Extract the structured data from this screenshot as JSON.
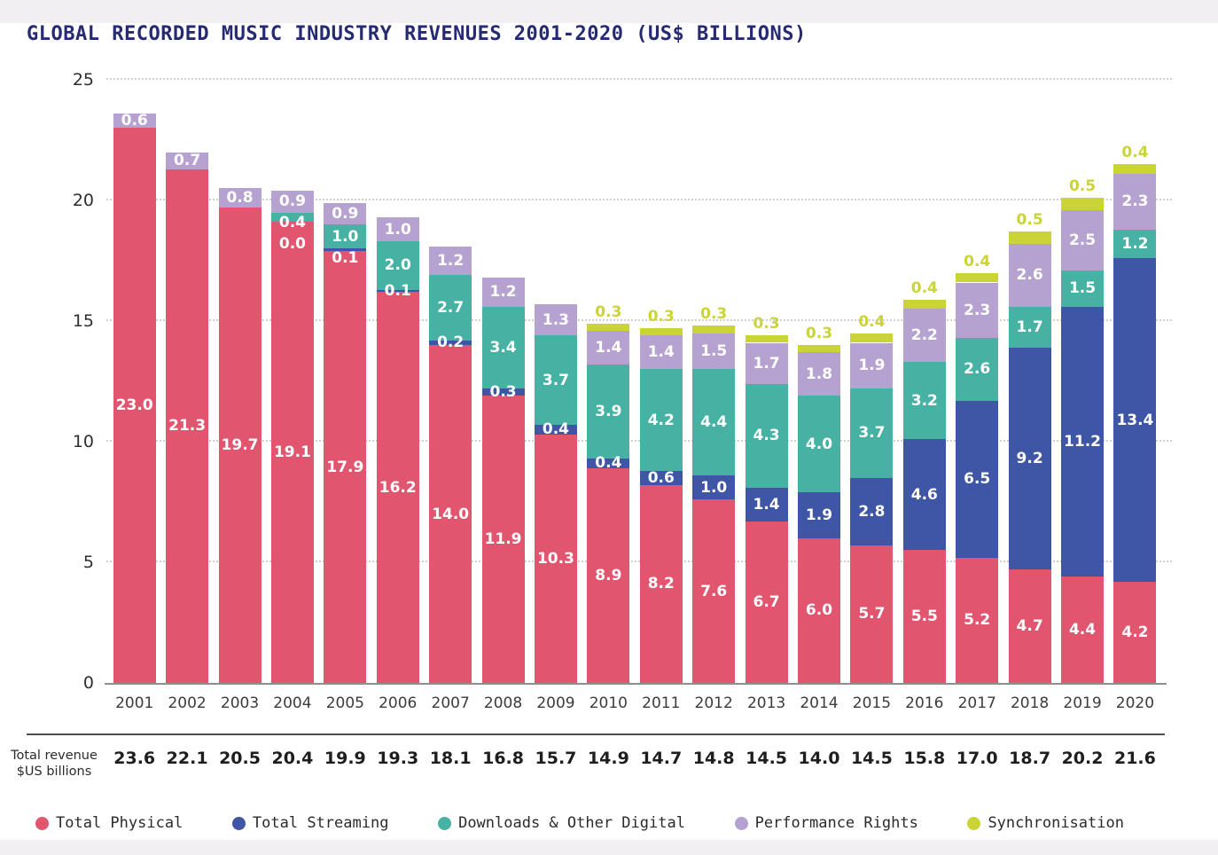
{
  "title": "GLOBAL RECORDED MUSIC INDUSTRY REVENUES 2001-2020 (US$ BILLIONS)",
  "colors": {
    "physical": "#e2556f",
    "streaming": "#3f55a5",
    "downloads": "#47b2a3",
    "performance": "#b6a2d1",
    "sync": "#cbd437",
    "title_text": "#262a72",
    "axis_text": "#2e2e2e",
    "grid": "#cfcfcf"
  },
  "y_axis": {
    "ticks": [
      25,
      20,
      15,
      10,
      5,
      0
    ]
  },
  "totals_row": {
    "label_line1": "Total revenue",
    "label_line2": "$US billions"
  },
  "legend": [
    {
      "key": "physical",
      "label": "Total Physical"
    },
    {
      "key": "streaming",
      "label": "Total Streaming"
    },
    {
      "key": "downloads",
      "label": "Downloads & Other Digital"
    },
    {
      "key": "performance",
      "label": "Performance Rights"
    },
    {
      "key": "sync",
      "label": "Synchronisation"
    }
  ],
  "chart_data": {
    "type": "bar",
    "stacked": true,
    "title": "GLOBAL RECORDED MUSIC INDUSTRY REVENUES 2001-2020 (US$ BILLIONS)",
    "xlabel": "",
    "ylabel": "",
    "ylim": [
      0,
      25
    ],
    "grid": "dotted-horizontal",
    "legend_position": "bottom",
    "categories": [
      "2001",
      "2002",
      "2003",
      "2004",
      "2005",
      "2006",
      "2007",
      "2008",
      "2009",
      "2010",
      "2011",
      "2012",
      "2013",
      "2014",
      "2015",
      "2016",
      "2017",
      "2018",
      "2019",
      "2020"
    ],
    "series": [
      {
        "name": "Total Physical",
        "key": "physical",
        "values": [
          23.0,
          21.3,
          19.7,
          19.1,
          17.9,
          16.2,
          14.0,
          11.9,
          10.3,
          8.9,
          8.2,
          7.6,
          6.7,
          6.0,
          5.7,
          5.5,
          5.2,
          4.7,
          4.4,
          4.2
        ]
      },
      {
        "name": "Total Streaming",
        "key": "streaming",
        "values": [
          null,
          null,
          null,
          0.0,
          0.1,
          0.1,
          0.2,
          0.3,
          0.4,
          0.4,
          0.6,
          1.0,
          1.4,
          1.9,
          2.8,
          4.6,
          6.5,
          9.2,
          11.2,
          13.4
        ]
      },
      {
        "name": "Downloads & Other Digital",
        "key": "downloads",
        "values": [
          null,
          null,
          null,
          0.4,
          1.0,
          2.0,
          2.7,
          3.4,
          3.7,
          3.9,
          4.2,
          4.4,
          4.3,
          4.0,
          3.7,
          3.2,
          2.6,
          1.7,
          1.5,
          1.2
        ]
      },
      {
        "name": "Performance Rights",
        "key": "performance",
        "values": [
          0.6,
          0.7,
          0.8,
          0.9,
          0.9,
          1.0,
          1.2,
          1.2,
          1.3,
          1.4,
          1.4,
          1.5,
          1.7,
          1.8,
          1.9,
          2.2,
          2.3,
          2.6,
          2.5,
          2.3
        ]
      },
      {
        "name": "Synchronisation",
        "key": "sync",
        "values": [
          null,
          null,
          null,
          null,
          null,
          null,
          null,
          null,
          null,
          0.3,
          0.3,
          0.3,
          0.3,
          0.3,
          0.4,
          0.4,
          0.4,
          0.5,
          0.5,
          0.4
        ]
      }
    ],
    "totals": [
      23.6,
      22.1,
      20.5,
      20.4,
      19.9,
      19.3,
      18.1,
      16.8,
      15.7,
      14.9,
      14.7,
      14.8,
      14.5,
      14.0,
      14.5,
      15.8,
      17.0,
      18.7,
      20.2,
      21.6
    ]
  }
}
